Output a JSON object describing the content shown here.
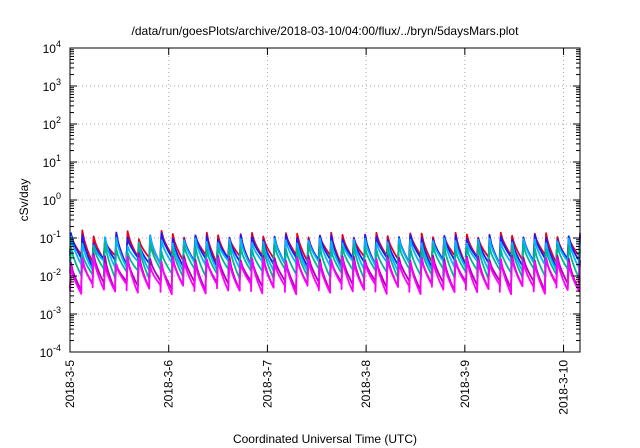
{
  "chart_data": {
    "type": "line",
    "title": "/data/run/goesPlots/archive/2018-03-10/04:00/flux/../bryn/5daysMars.plot",
    "xlabel": "Coordinated Universal Time (UTC)",
    "ylabel": "cSv/day",
    "yscale": "log",
    "ylim": [
      0.0001,
      10000
    ],
    "xlim": [
      "2018-03-05 00:00",
      "2018-03-10 04:00"
    ],
    "x_tick_labels": [
      "2018-3-5",
      "2018-3-6",
      "2018-3-7",
      "2018-3-8",
      "2018-3-9",
      "2018-3-10"
    ],
    "y_tick_labels": [
      {
        "base": "10",
        "exp": "-4"
      },
      {
        "base": "10",
        "exp": "-3"
      },
      {
        "base": "10",
        "exp": "-2"
      },
      {
        "base": "10",
        "exp": "-1"
      },
      {
        "base": "10",
        "exp": "0"
      },
      {
        "base": "10",
        "exp": "1"
      },
      {
        "base": "10",
        "exp": "2"
      },
      {
        "base": "10",
        "exp": "3"
      },
      {
        "base": "10",
        "exp": "4"
      }
    ],
    "grid": true,
    "pattern_period_hours": 2.75,
    "series": [
      {
        "color": "#e8001c",
        "peak": 0.12,
        "trough": 0.028
      },
      {
        "color": "#1a1aff",
        "peak": 0.105,
        "trough": 0.024
      },
      {
        "color": "#00b7ff",
        "peak": 0.085,
        "trough": 0.019
      },
      {
        "color": "#00b890",
        "peak": 0.058,
        "trough": 0.012
      },
      {
        "color": "#b000b0",
        "peak": 0.03,
        "trough": 0.0058
      },
      {
        "color": "#ff00ff",
        "peak": 0.026,
        "trough": 0.0047
      }
    ]
  }
}
